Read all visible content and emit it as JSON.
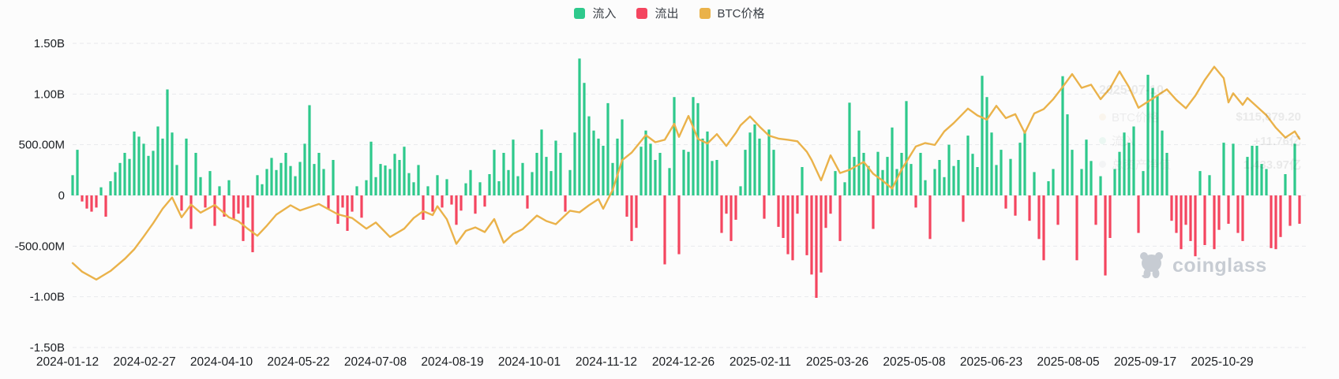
{
  "legend": {
    "items": [
      {
        "label": "流入",
        "color": "#2ec98c"
      },
      {
        "label": "流出",
        "color": "#f4455f"
      },
      {
        "label": "BTC价格",
        "color": "#eab24a"
      }
    ]
  },
  "watermark": {
    "text": "coinglass",
    "icon": "coinglass-bear-icon",
    "color": "#c7ccd3"
  },
  "ghost_tooltip": {
    "date": "2025-07-10",
    "rows": [
      {
        "label": "BTC价格",
        "value": "$115,879.20",
        "marker_color": "#eab24a"
      },
      {
        "label": "流入",
        "value": "+11.76亿",
        "marker_color": "#2ec98c"
      },
      {
        "label": "总资产净值",
        "value": "1,433.97亿",
        "marker_color": "#9aa0a8"
      }
    ]
  },
  "chart_data": {
    "type": "bar",
    "title": "",
    "xlabel": "",
    "ylabel": "",
    "grid": "dashed-horizontal",
    "legend_position": "top-center",
    "y_tick_labels": [
      "1.50B",
      "1.00B",
      "500.00M",
      "0",
      "-500.00M",
      "-1.00B",
      "-1.50B"
    ],
    "y_tick_values_M": [
      1500,
      1000,
      500,
      0,
      -500,
      -1000,
      -1500
    ],
    "ylim_M": [
      -1500,
      1500
    ],
    "x_tick_labels": [
      "2024-01-12",
      "2024-02-27",
      "2024-04-10",
      "2024-05-22",
      "2024-07-08",
      "2024-08-19",
      "2024-10-01",
      "2024-11-12",
      "2024-12-26",
      "2025-02-11",
      "2025-03-26",
      "2025-05-08",
      "2025-06-23",
      "2025-08-05",
      "2025-09-17",
      "2025-10-29"
    ],
    "series": [
      {
        "name": "流入",
        "type": "bar",
        "color": "#2ec98c",
        "meaning": "daily BTC ETF inflow (positive bars), millions USD"
      },
      {
        "name": "流出",
        "type": "bar",
        "color": "#f4455f",
        "meaning": "daily BTC ETF outflow (negative bars), millions USD"
      },
      {
        "name": "BTC价格",
        "type": "line",
        "color": "#eab24a",
        "axis": "hidden-price-axis-USD"
      }
    ],
    "flows_M": [
      200,
      450,
      -60,
      -130,
      -160,
      -120,
      80,
      -210,
      140,
      230,
      320,
      420,
      360,
      630,
      580,
      510,
      390,
      440,
      680,
      560,
      1045,
      620,
      300,
      -150,
      560,
      -330,
      420,
      180,
      -120,
      240,
      -300,
      90,
      -210,
      150,
      -240,
      -180,
      -450,
      -120,
      -560,
      200,
      110,
      260,
      370,
      250,
      320,
      420,
      290,
      190,
      330,
      510,
      890,
      310,
      420,
      260,
      -140,
      350,
      -280,
      -120,
      -350,
      -160,
      90,
      -220,
      150,
      530,
      180,
      310,
      295,
      260,
      410,
      350,
      480,
      220,
      130,
      300,
      -240,
      90,
      -160,
      200,
      -120,
      160,
      -90,
      -290,
      -150,
      120,
      250,
      -180,
      130,
      -110,
      210,
      450,
      140,
      420,
      250,
      550,
      190,
      320,
      -130,
      230,
      420,
      650,
      380,
      240,
      540,
      420,
      -160,
      250,
      620,
      1350,
      1110,
      780,
      640,
      560,
      490,
      910,
      320,
      560,
      750,
      -210,
      -450,
      -320,
      480,
      640,
      510,
      350,
      420,
      -680,
      270,
      970,
      -580,
      450,
      430,
      970,
      910,
      560,
      630,
      340,
      350,
      -370,
      -180,
      -450,
      -240,
      90,
      450,
      620,
      700,
      560,
      -230,
      650,
      450,
      -310,
      -420,
      -580,
      -640,
      -180,
      280,
      -590,
      -780,
      -1010,
      -760,
      -320,
      -180,
      240,
      -450,
      130,
      915,
      380,
      640,
      420,
      290,
      -330,
      430,
      250,
      380,
      670,
      260,
      420,
      930,
      310,
      -120,
      420,
      150,
      -430,
      260,
      350,
      180,
      500,
      290,
      350,
      -260,
      590,
      410,
      280,
      1180,
      970,
      620,
      300,
      450,
      -130,
      360,
      -200,
      520,
      640,
      -250,
      230,
      -430,
      -640,
      140,
      260,
      -290,
      1176,
      800,
      450,
      -640,
      260,
      550,
      340,
      -290,
      190,
      -790,
      -420,
      260,
      430,
      620,
      520,
      680,
      -370,
      240,
      1190,
      1060,
      980,
      640,
      420,
      -250,
      -370,
      -530,
      -290,
      -450,
      -600,
      240,
      -490,
      200,
      -530,
      -340,
      520,
      -280,
      510,
      -370,
      -450,
      380,
      490,
      490,
      310,
      260,
      -520,
      -530,
      -410,
      210,
      -300,
      510,
      -280
    ],
    "price_axis": {
      "unit": "USD",
      "min": 12000,
      "max": 135600,
      "visible": false
    },
    "price_anchors_idx_usd": [
      [
        0,
        46300
      ],
      [
        2,
        42800
      ],
      [
        5,
        39600
      ],
      [
        8,
        43100
      ],
      [
        11,
        48000
      ],
      [
        13,
        51900
      ],
      [
        15,
        57100
      ],
      [
        17,
        62500
      ],
      [
        19,
        68400
      ],
      [
        21,
        73000
      ],
      [
        22,
        68900
      ],
      [
        23,
        64900
      ],
      [
        25,
        70100
      ],
      [
        27,
        66800
      ],
      [
        30,
        69900
      ],
      [
        33,
        64900
      ],
      [
        35,
        63300
      ],
      [
        37,
        60200
      ],
      [
        39,
        57400
      ],
      [
        41,
        61500
      ],
      [
        43,
        66000
      ],
      [
        46,
        69800
      ],
      [
        48,
        67700
      ],
      [
        52,
        70300
      ],
      [
        54,
        68200
      ],
      [
        56,
        66100
      ],
      [
        59,
        64600
      ],
      [
        62,
        60300
      ],
      [
        64,
        62800
      ],
      [
        67,
        56900
      ],
      [
        70,
        60300
      ],
      [
        72,
        64600
      ],
      [
        74,
        67400
      ],
      [
        76,
        65800
      ],
      [
        77,
        69400
      ],
      [
        79,
        64100
      ],
      [
        81,
        54100
      ],
      [
        83,
        59400
      ],
      [
        85,
        60800
      ],
      [
        87,
        58900
      ],
      [
        89,
        64200
      ],
      [
        91,
        54600
      ],
      [
        93,
        58200
      ],
      [
        95,
        60100
      ],
      [
        98,
        65600
      ],
      [
        100,
        63400
      ],
      [
        102,
        62100
      ],
      [
        105,
        67600
      ],
      [
        107,
        66900
      ],
      [
        109,
        69800
      ],
      [
        111,
        72300
      ],
      [
        112,
        68400
      ],
      [
        114,
        76000
      ],
      [
        116,
        88100
      ],
      [
        118,
        91200
      ],
      [
        121,
        98300
      ],
      [
        123,
        95400
      ],
      [
        125,
        96400
      ],
      [
        127,
        102900
      ],
      [
        128,
        97600
      ],
      [
        130,
        106100
      ],
      [
        132,
        96800
      ],
      [
        134,
        94900
      ],
      [
        136,
        98700
      ],
      [
        138,
        93900
      ],
      [
        140,
        99200
      ],
      [
        141,
        102300
      ],
      [
        143,
        105900
      ],
      [
        145,
        101800
      ],
      [
        147,
        98100
      ],
      [
        149,
        96900
      ],
      [
        151,
        96400
      ],
      [
        153,
        95800
      ],
      [
        155,
        91500
      ],
      [
        156,
        88200
      ],
      [
        158,
        79900
      ],
      [
        160,
        90100
      ],
      [
        162,
        82900
      ],
      [
        164,
        84200
      ],
      [
        167,
        87400
      ],
      [
        169,
        82600
      ],
      [
        171,
        79800
      ],
      [
        173,
        76600
      ],
      [
        175,
        84300
      ],
      [
        178,
        93700
      ],
      [
        180,
        95100
      ],
      [
        182,
        94300
      ],
      [
        184,
        99800
      ],
      [
        186,
        103200
      ],
      [
        189,
        109100
      ],
      [
        191,
        106300
      ],
      [
        193,
        104600
      ],
      [
        195,
        110200
      ],
      [
        197,
        105200
      ],
      [
        199,
        106800
      ],
      [
        201,
        99200
      ],
      [
        203,
        107100
      ],
      [
        205,
        108900
      ],
      [
        207,
        112900
      ],
      [
        209,
        117900
      ],
      [
        211,
        123100
      ],
      [
        213,
        117500
      ],
      [
        215,
        118800
      ],
      [
        217,
        112900
      ],
      [
        219,
        117300
      ],
      [
        221,
        124200
      ],
      [
        223,
        117800
      ],
      [
        225,
        109400
      ],
      [
        227,
        111900
      ],
      [
        229,
        114400
      ],
      [
        231,
        116900
      ],
      [
        233,
        112600
      ],
      [
        235,
        109200
      ],
      [
        237,
        114300
      ],
      [
        239,
        120700
      ],
      [
        241,
        126100
      ],
      [
        243,
        121400
      ],
      [
        244,
        111600
      ],
      [
        245,
        115300
      ],
      [
        247,
        110600
      ],
      [
        248,
        113400
      ],
      [
        250,
        109900
      ],
      [
        252,
        106400
      ],
      [
        254,
        101300
      ],
      [
        256,
        97300
      ],
      [
        258,
        99800
      ],
      [
        259,
        96800
      ]
    ],
    "colors": {
      "grid": "#e7e9ec",
      "axis_text": "#1b1e22",
      "background": "#fcfcfc"
    }
  }
}
